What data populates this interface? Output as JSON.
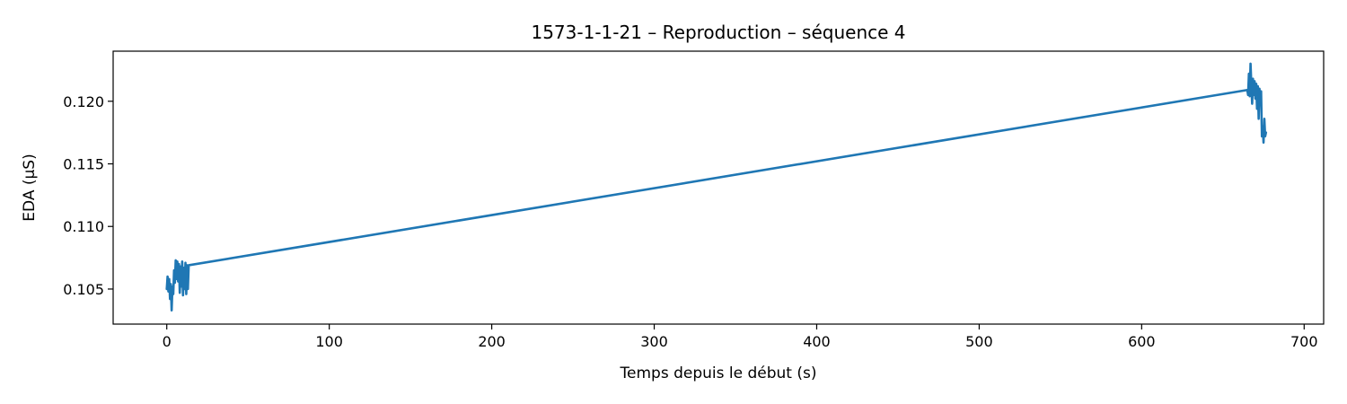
{
  "chart_data": {
    "type": "line",
    "title": "1573-1-1-21 – Reproduction – séquence 4",
    "xlabel": "Temps depuis le début (s)",
    "ylabel": "EDA (µS)",
    "xlim": [
      -33,
      712
    ],
    "ylim": [
      0.1022,
      0.124
    ],
    "xticks": [
      0,
      100,
      200,
      300,
      400,
      500,
      600,
      700
    ],
    "xtick_labels": [
      "0",
      "100",
      "200",
      "300",
      "400",
      "500",
      "600",
      "700"
    ],
    "yticks": [
      0.105,
      0.11,
      0.115,
      0.12
    ],
    "ytick_labels": [
      "0.105",
      "0.110",
      "0.115",
      "0.120"
    ],
    "grid": false,
    "legend": "none",
    "series": [
      {
        "color": "#1f77b4",
        "x": [
          0,
          0.5,
          1,
          1.5,
          2,
          2.5,
          3,
          3.5,
          4,
          4.5,
          5,
          5.5,
          6,
          6.5,
          7,
          7.5,
          8,
          8.5,
          9,
          9.5,
          10,
          10.5,
          11,
          11.5,
          12,
          12.5,
          13,
          13.5,
          665,
          665.5,
          666,
          666.5,
          667,
          667.5,
          668,
          668.5,
          669,
          669.5,
          670,
          670.5,
          671,
          671.5,
          672,
          672.5,
          673,
          673.5,
          674,
          674.5,
          675,
          675.5,
          676,
          676.5
        ],
        "y": [
          0.105,
          0.106,
          0.1048,
          0.1058,
          0.1042,
          0.1054,
          0.1033,
          0.1052,
          0.1046,
          0.1065,
          0.1055,
          0.1073,
          0.1058,
          0.1072,
          0.1056,
          0.107,
          0.1047,
          0.1068,
          0.1052,
          0.1072,
          0.1045,
          0.1067,
          0.105,
          0.1071,
          0.1046,
          0.1069,
          0.105,
          0.1069,
          0.1209,
          0.1205,
          0.1222,
          0.1204,
          0.123,
          0.1213,
          0.1198,
          0.1218,
          0.1205,
          0.1216,
          0.1202,
          0.1214,
          0.1194,
          0.1212,
          0.1186,
          0.121,
          0.1197,
          0.1208,
          0.1172,
          0.118,
          0.1167,
          0.1186,
          0.1172,
          0.1175
        ]
      }
    ]
  }
}
